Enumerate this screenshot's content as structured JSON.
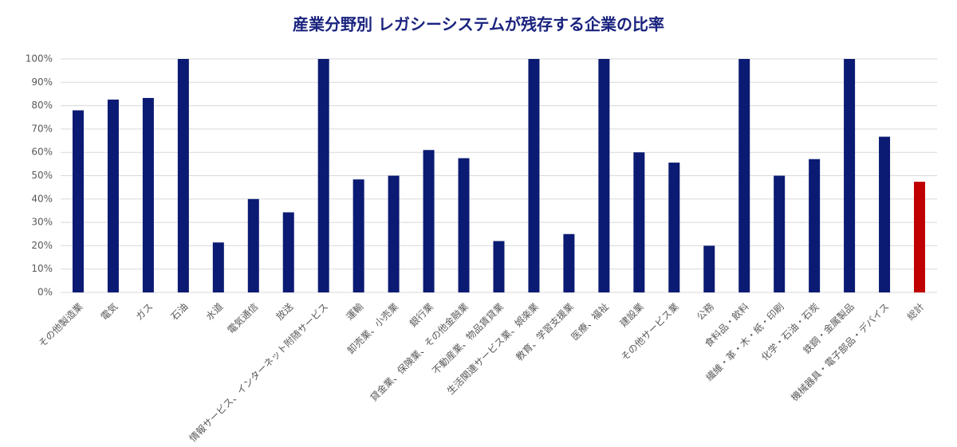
{
  "chart_data": {
    "type": "bar",
    "title": "産業分野別 レガシーシステムが残存する企業の比率",
    "categories": [
      "その他製造業",
      "電気",
      "ガス",
      "石油",
      "水道",
      "電気通信",
      "放送",
      "情報サービス、インターネット附随サービス",
      "運輸",
      "卸売業、小売業",
      "銀行業",
      "貸金業、保険業、その他金融業",
      "不動産業、物品賃貸業",
      "生活関連サービス業、娯楽業",
      "教育、学習支援業",
      "医療、福祉",
      "建設業",
      "その他サービス業",
      "公務",
      "食料品・飲料",
      "繊維・革・木・紙・印刷",
      "化学・石油・石炭",
      "鉄鋼・金属製品",
      "機械器具・電子部品・デバイス",
      "総計"
    ],
    "values": [
      78,
      82.6,
      83.3,
      100,
      21.4,
      40,
      34.3,
      100,
      48.4,
      50,
      61,
      57.5,
      22,
      100,
      25,
      100,
      60,
      55.6,
      20,
      100,
      50,
      57.1,
      100,
      66.7,
      47.4
    ],
    "colors": [
      "#0b1a72",
      "#0b1a72",
      "#0b1a72",
      "#0b1a72",
      "#0b1a72",
      "#0b1a72",
      "#0b1a72",
      "#0b1a72",
      "#0b1a72",
      "#0b1a72",
      "#0b1a72",
      "#0b1a72",
      "#0b1a72",
      "#0b1a72",
      "#0b1a72",
      "#0b1a72",
      "#0b1a72",
      "#0b1a72",
      "#0b1a72",
      "#0b1a72",
      "#0b1a72",
      "#0b1a72",
      "#0b1a72",
      "#0b1a72",
      "#c00000"
    ],
    "ylim": [
      0,
      100
    ],
    "yticks": [
      {
        "value": 0,
        "label": "0%"
      },
      {
        "value": 10,
        "label": "10%"
      },
      {
        "value": 20,
        "label": "20%"
      },
      {
        "value": 30,
        "label": "30%"
      },
      {
        "value": 40,
        "label": "40%"
      },
      {
        "value": 50,
        "label": "50%"
      },
      {
        "value": 60,
        "label": "60%"
      },
      {
        "value": 70,
        "label": "70%"
      },
      {
        "value": 80,
        "label": "80%"
      },
      {
        "value": 90,
        "label": "90%"
      },
      {
        "value": 100,
        "label": "100%"
      }
    ],
    "grid": true
  }
}
